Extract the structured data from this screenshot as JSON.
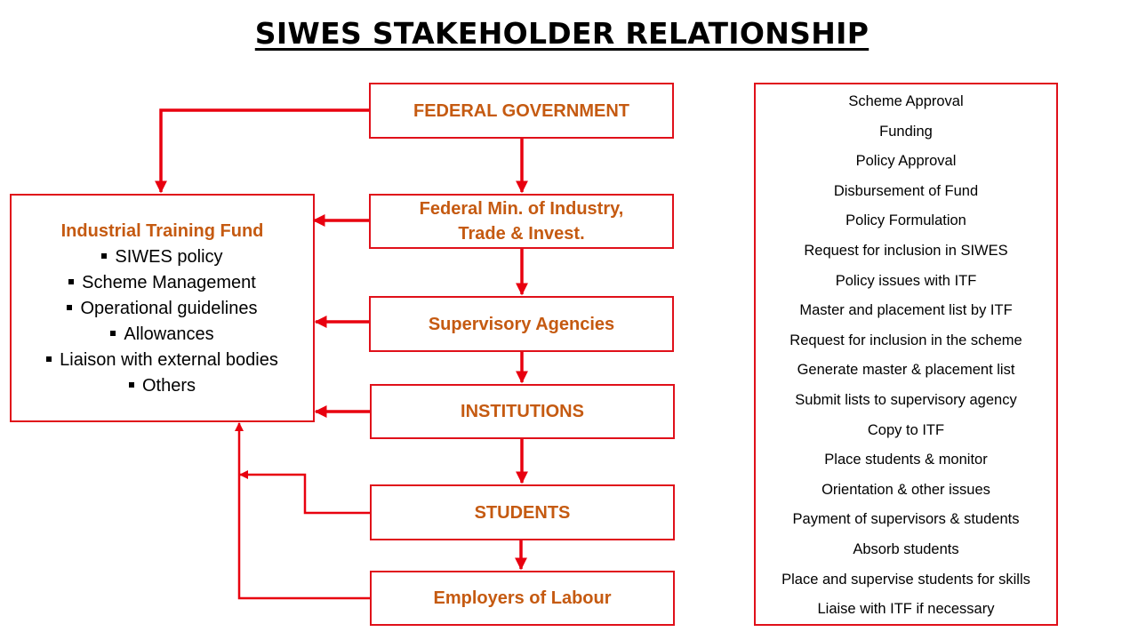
{
  "title": "SIWES STAKEHOLDER RELATIONSHIP",
  "flow": {
    "federal_government": "FEDERAL GOVERNMENT",
    "federal_ministry_line1": "Federal Min. of Industry,",
    "federal_ministry_line2": "Trade & Invest.",
    "supervisory_agencies": "Supervisory Agencies",
    "institutions": "INSTITUTIONS",
    "students": "STUDENTS",
    "employers": "Employers of Labour"
  },
  "itf": {
    "title": "Industrial Training Fund",
    "items": [
      "SIWES policy",
      "Scheme Management",
      "Operational guidelines",
      "Allowances",
      "Liaison with external bodies",
      "Others"
    ]
  },
  "responsibilities": [
    "Scheme Approval",
    "Funding",
    "Policy Approval",
    "Disbursement of Fund",
    "Policy Formulation",
    "Request for inclusion in SIWES",
    "Policy issues with ITF",
    "Master and placement list by ITF",
    "Request for inclusion in the scheme",
    "Generate master & placement list",
    "Submit lists to supervisory agency",
    "Copy to ITF",
    "Place students & monitor",
    "Orientation & other issues",
    "Payment of supervisors & students",
    "Absorb students",
    "Place and supervise students for skills",
    "Liaise with ITF if necessary"
  ],
  "colors": {
    "border": "#e0101a",
    "arrow": "#e8000f",
    "label": "#c55a11"
  }
}
